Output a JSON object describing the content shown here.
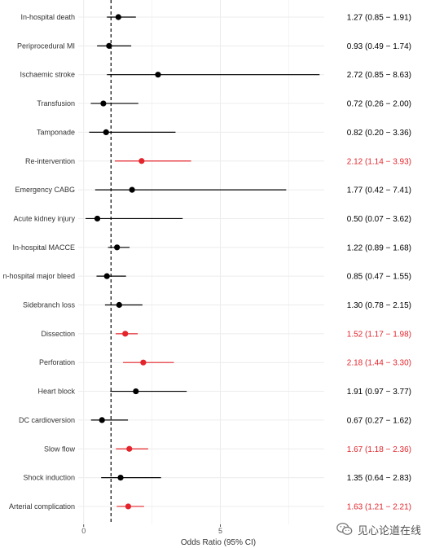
{
  "chart_data": {
    "type": "forest",
    "xlabel": "Odds Ratio (95% CI)",
    "xlim": [
      -0.2,
      8.8
    ],
    "xticks": [
      0,
      5
    ],
    "reference_line": 1,
    "colors": {
      "non_significant": "#000000",
      "significant": "#e3242b"
    },
    "rows": [
      {
        "label": "In-hospital death",
        "or": 1.27,
        "lo": 0.85,
        "hi": 1.91,
        "text": "1.27 (0.85 − 1.91)",
        "significant": false
      },
      {
        "label": "Periprocedural MI",
        "or": 0.93,
        "lo": 0.49,
        "hi": 1.74,
        "text": "0.93 (0.49 − 1.74)",
        "significant": false
      },
      {
        "label": "Ischaemic stroke",
        "or": 2.72,
        "lo": 0.85,
        "hi": 8.63,
        "text": "2.72 (0.85 − 8.63)",
        "significant": false
      },
      {
        "label": "Transfusion",
        "or": 0.72,
        "lo": 0.26,
        "hi": 2.0,
        "text": "0.72 (0.26 − 2.00)",
        "significant": false
      },
      {
        "label": "Tamponade",
        "or": 0.82,
        "lo": 0.2,
        "hi": 3.36,
        "text": "0.82 (0.20 − 3.36)",
        "significant": false
      },
      {
        "label": "Re-intervention",
        "or": 2.12,
        "lo": 1.14,
        "hi": 3.93,
        "text": "2.12 (1.14 − 3.93)",
        "significant": true
      },
      {
        "label": "Emergency CABG",
        "or": 1.77,
        "lo": 0.42,
        "hi": 7.41,
        "text": "1.77 (0.42 − 7.41)",
        "significant": false
      },
      {
        "label": "Acute kidney injury",
        "or": 0.5,
        "lo": 0.07,
        "hi": 3.62,
        "text": "0.50 (0.07 − 3.62)",
        "significant": false
      },
      {
        "label": "In-hospital MACCE",
        "or": 1.22,
        "lo": 0.89,
        "hi": 1.68,
        "text": "1.22 (0.89 − 1.68)",
        "significant": false
      },
      {
        "label": "n-hospital major bleed",
        "or": 0.85,
        "lo": 0.47,
        "hi": 1.55,
        "text": "0.85 (0.47 − 1.55)",
        "significant": false
      },
      {
        "label": "Sidebranch loss",
        "or": 1.3,
        "lo": 0.78,
        "hi": 2.15,
        "text": "1.30 (0.78 − 2.15)",
        "significant": false
      },
      {
        "label": "Dissection",
        "or": 1.52,
        "lo": 1.17,
        "hi": 1.98,
        "text": "1.52 (1.17 − 1.98)",
        "significant": true
      },
      {
        "label": "Perforation",
        "or": 2.18,
        "lo": 1.44,
        "hi": 3.3,
        "text": "2.18 (1.44 − 3.30)",
        "significant": true
      },
      {
        "label": "Heart block",
        "or": 1.91,
        "lo": 0.97,
        "hi": 3.77,
        "text": "1.91 (0.97 − 3.77)",
        "significant": false
      },
      {
        "label": "DC cardioversion",
        "or": 0.67,
        "lo": 0.27,
        "hi": 1.62,
        "text": "0.67 (0.27 − 1.62)",
        "significant": false
      },
      {
        "label": "Slow flow",
        "or": 1.67,
        "lo": 1.18,
        "hi": 2.36,
        "text": "1.67 (1.18 − 2.36)",
        "significant": true
      },
      {
        "label": "Shock induction",
        "or": 1.35,
        "lo": 0.64,
        "hi": 2.83,
        "text": "1.35 (0.64 − 2.83)",
        "significant": false
      },
      {
        "label": "Arterial complication",
        "or": 1.63,
        "lo": 1.21,
        "hi": 2.21,
        "text": "1.63 (1.21 − 2.21)",
        "significant": true
      }
    ]
  },
  "watermark": {
    "text": "见心论道在线",
    "icon": "wechat-icon"
  }
}
